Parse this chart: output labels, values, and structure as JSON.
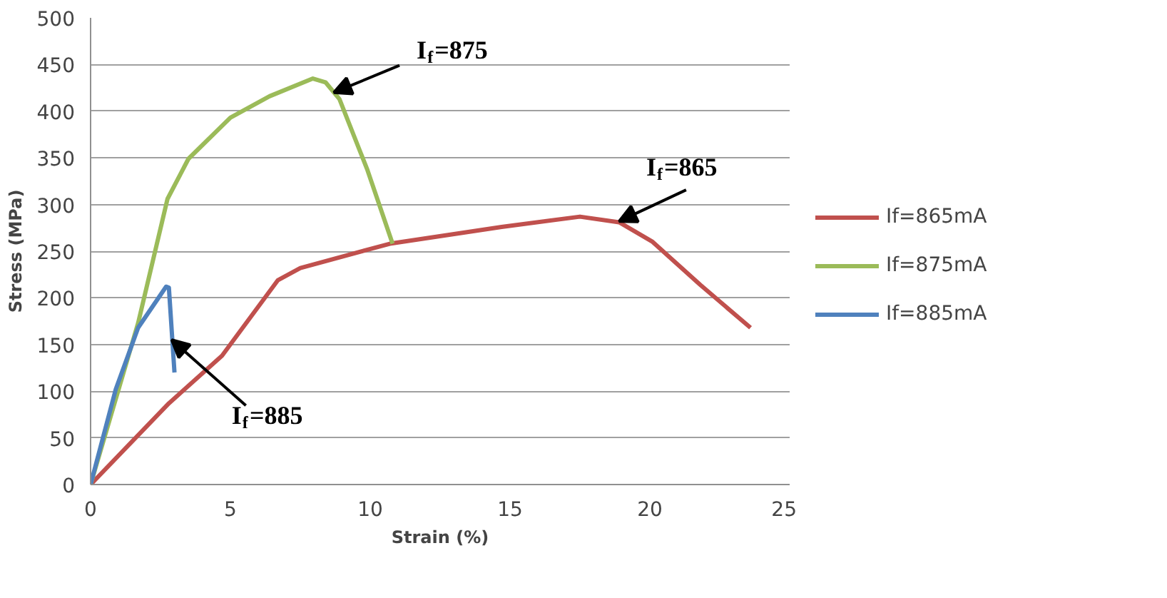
{
  "chart_data": {
    "type": "line",
    "xlabel": "Strain (%)",
    "ylabel": "Stress (MPa)",
    "xlim": [
      0,
      25
    ],
    "ylim": [
      0,
      500
    ],
    "xticks": [
      0,
      5,
      10,
      15,
      20,
      25
    ],
    "yticks": [
      0,
      50,
      100,
      150,
      200,
      250,
      300,
      350,
      400,
      450,
      500
    ],
    "grid": "y",
    "legend": "right",
    "marker": "none",
    "line_style": "solid",
    "series": [
      {
        "name": "If=865mA",
        "color": "#c0504d",
        "x": [
          0,
          2.8,
          4.7,
          6.7,
          7.5,
          10.7,
          14.7,
          17.5,
          18.9,
          20.1,
          21.8,
          23.6
        ],
        "values": [
          0,
          87,
          138,
          219,
          232,
          258,
          276,
          287,
          281,
          260,
          214,
          168
        ]
      },
      {
        "name": "If=875mA",
        "color": "#9bbb59",
        "x": [
          0,
          1.7,
          2.75,
          3.5,
          5.0,
          6.4,
          7.95,
          8.4,
          8.9,
          9.9,
          10.8
        ],
        "values": [
          0,
          173,
          306,
          349,
          393,
          416,
          435,
          431,
          413,
          337,
          258
        ]
      },
      {
        "name": "If=885mA",
        "color": "#4f81bd",
        "x": [
          0,
          0.9,
          1.7,
          2.7,
          2.8,
          3.0
        ],
        "values": [
          0,
          102,
          168,
          212,
          211,
          120
        ]
      }
    ],
    "annotations": [
      {
        "text": "I$_{f}$=875",
        "x": 8.7,
        "y": 420
      },
      {
        "text": "I$_{f}$=865",
        "x": 18.9,
        "y": 282
      },
      {
        "text": "I$_{f}$=885",
        "x": 2.9,
        "y": 155
      }
    ]
  }
}
